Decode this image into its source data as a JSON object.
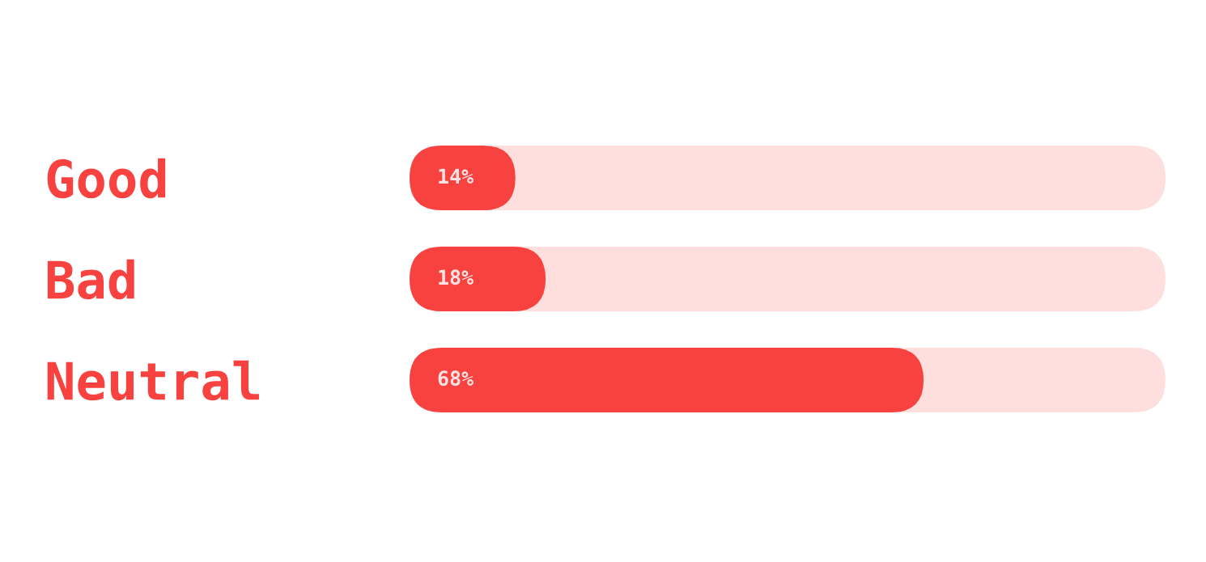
{
  "chart_data": {
    "type": "bar",
    "orientation": "horizontal",
    "categories": [
      "Good",
      "Bad",
      "Neutral"
    ],
    "values": [
      14,
      18,
      68
    ],
    "value_labels": [
      "14%",
      "18%",
      "68%"
    ],
    "color": "#f7423f",
    "xlim": [
      0,
      100
    ],
    "tick_labels": "y",
    "grid": false,
    "legend": false
  }
}
